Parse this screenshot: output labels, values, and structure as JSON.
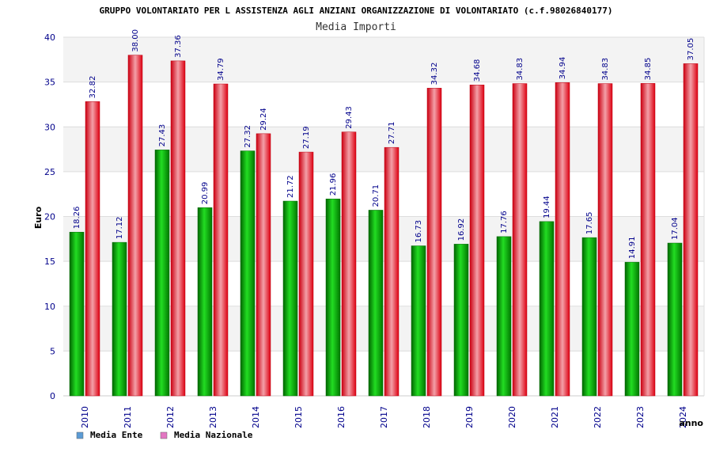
{
  "chart_data": {
    "type": "bar",
    "title": "GRUPPO VOLONTARIATO PER L ASSISTENZA AGLI ANZIANI ORGANIZZAZIONE DI VOLONTARIATO (c.f.98026840177)",
    "subtitle": "Media Importi",
    "xlabel": "anno",
    "ylabel": "Euro",
    "ylim": [
      0,
      40
    ],
    "yticks": [
      0,
      5,
      10,
      15,
      20,
      25,
      30,
      35,
      40
    ],
    "categories": [
      "2010",
      "2011",
      "2012",
      "2013",
      "2014",
      "2015",
      "2016",
      "2017",
      "2018",
      "2019",
      "2020",
      "2021",
      "2022",
      "2023",
      "2024"
    ],
    "series": [
      {
        "name": "Media Ente",
        "color": "#00bb00",
        "legend_color": "#5b9bd5",
        "values": [
          18.26,
          17.12,
          27.43,
          20.99,
          27.32,
          21.72,
          21.96,
          20.71,
          16.73,
          16.92,
          17.76,
          19.44,
          17.65,
          14.91,
          17.04
        ],
        "labels": [
          "18.26",
          "17.12",
          "27.43",
          "20.99",
          "27.32",
          "21.72",
          "21.96",
          "20.71",
          "16.73",
          "16.92",
          "17.76",
          "19.44",
          "17.65",
          "14.91",
          "17.04"
        ]
      },
      {
        "name": "Media Nazionale",
        "color": "#ee1122",
        "legend_color": "#e377c2",
        "values": [
          32.82,
          38.0,
          37.36,
          34.79,
          29.24,
          27.19,
          29.43,
          27.71,
          34.32,
          34.68,
          34.83,
          34.94,
          34.83,
          34.85,
          37.05
        ],
        "labels": [
          "32.82",
          "38.00",
          "37.36",
          "34.79",
          "29.24",
          "27.19",
          "29.43",
          "27.71",
          "34.32",
          "34.68",
          "34.83",
          "34.94",
          "34.83",
          "34.85",
          "37.05"
        ]
      }
    ],
    "grid": true,
    "legend": "bottom-left"
  }
}
